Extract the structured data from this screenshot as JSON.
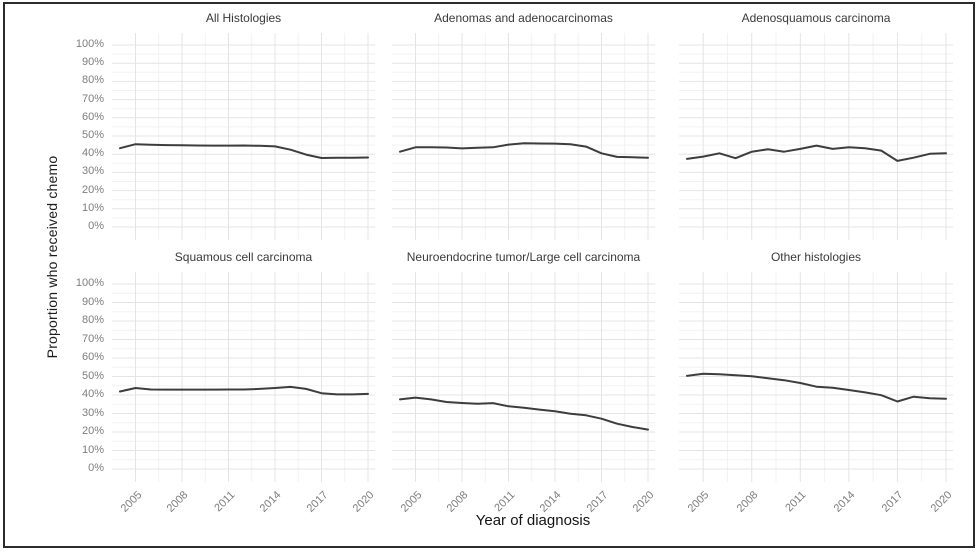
{
  "figure": {
    "y_axis_title": "Proportion who received chemo",
    "x_axis_title": "Year of diagnosis",
    "y_tick_labels": [
      "0%",
      "10%",
      "20%",
      "30%",
      "40%",
      "50%",
      "60%",
      "70%",
      "80%",
      "90%",
      "100%"
    ],
    "x_tick_labels": [
      "2005",
      "2008",
      "2011",
      "2014",
      "2017",
      "2020"
    ],
    "colors": {
      "line": "#3d3d3d",
      "grid_major": "#e4e4e4",
      "grid_minor": "#f2f2f2",
      "tick_text": "#7d7d7d",
      "strip_text": "#3a3a3a",
      "axis_title_text": "#141414",
      "frame_border": "#2b2b2b",
      "panel_background": "#ffffff"
    }
  },
  "chart_data": [
    {
      "type": "line",
      "title": "All Histologies",
      "xlabel": "Year of diagnosis",
      "ylabel": "Proportion who received chemo",
      "ylim": [
        0,
        100
      ],
      "xticks": [
        2005,
        2008,
        2011,
        2014,
        2017,
        2020
      ],
      "grid": "on",
      "legend": "none",
      "x": [
        2004,
        2005,
        2006,
        2007,
        2008,
        2009,
        2010,
        2011,
        2012,
        2013,
        2014,
        2015,
        2016,
        2017,
        2018,
        2019,
        2020
      ],
      "y": [
        43.3,
        45.5,
        45.2,
        45.0,
        44.9,
        44.8,
        44.7,
        44.7,
        44.8,
        44.6,
        44.3,
        42.5,
        39.8,
        37.9,
        38.0,
        38.1,
        38.2
      ]
    },
    {
      "type": "line",
      "title": "Adenomas and adenocarcinomas",
      "xlabel": "Year of diagnosis",
      "ylabel": "Proportion who received chemo",
      "ylim": [
        0,
        100
      ],
      "xticks": [
        2005,
        2008,
        2011,
        2014,
        2017,
        2020
      ],
      "grid": "on",
      "legend": "none",
      "x": [
        2004,
        2005,
        2006,
        2007,
        2008,
        2009,
        2010,
        2011,
        2012,
        2013,
        2014,
        2015,
        2016,
        2017,
        2018,
        2019,
        2020
      ],
      "y": [
        41.4,
        43.8,
        43.8,
        43.7,
        43.2,
        43.5,
        43.8,
        45.3,
        46.0,
        45.9,
        45.8,
        45.5,
        44.2,
        40.5,
        38.5,
        38.3,
        38.1
      ]
    },
    {
      "type": "line",
      "title": "Adenosquamous carcinoma",
      "xlabel": "Year of diagnosis",
      "ylabel": "Proportion who received chemo",
      "ylim": [
        0,
        100
      ],
      "xticks": [
        2005,
        2008,
        2011,
        2014,
        2017,
        2020
      ],
      "grid": "on",
      "legend": "none",
      "x": [
        2004,
        2005,
        2006,
        2007,
        2008,
        2009,
        2010,
        2011,
        2012,
        2013,
        2014,
        2015,
        2016,
        2017,
        2018,
        2019,
        2020
      ],
      "y": [
        37.4,
        38.7,
        40.5,
        37.8,
        41.4,
        42.7,
        41.4,
        42.9,
        44.7,
        42.9,
        43.8,
        43.3,
        42.0,
        36.3,
        38.1,
        40.2,
        40.5
      ]
    },
    {
      "type": "line",
      "title": "Squamous cell carcinoma",
      "xlabel": "Year of diagnosis",
      "ylabel": "Proportion who received chemo",
      "ylim": [
        0,
        100
      ],
      "xticks": [
        2005,
        2008,
        2011,
        2014,
        2017,
        2020
      ],
      "grid": "on",
      "legend": "none",
      "x": [
        2004,
        2005,
        2006,
        2007,
        2008,
        2009,
        2010,
        2011,
        2012,
        2013,
        2014,
        2015,
        2016,
        2017,
        2018,
        2019,
        2020
      ],
      "y": [
        41.9,
        43.8,
        43.0,
        42.9,
        42.9,
        42.9,
        42.9,
        43.0,
        43.0,
        43.3,
        43.8,
        44.4,
        43.3,
        41.0,
        40.3,
        40.3,
        40.6
      ]
    },
    {
      "type": "line",
      "title": "Neuroendocrine tumor/Large cell carcinoma",
      "xlabel": "Year of diagnosis",
      "ylabel": "Proportion who received chemo",
      "ylim": [
        0,
        100
      ],
      "xticks": [
        2005,
        2008,
        2011,
        2014,
        2017,
        2020
      ],
      "grid": "on",
      "legend": "none",
      "x": [
        2004,
        2005,
        2006,
        2007,
        2008,
        2009,
        2010,
        2011,
        2012,
        2013,
        2014,
        2015,
        2016,
        2017,
        2018,
        2019,
        2020
      ],
      "y": [
        37.6,
        38.6,
        37.6,
        36.2,
        35.7,
        35.3,
        35.6,
        33.9,
        33.1,
        32.1,
        31.2,
        29.9,
        29.0,
        27.2,
        24.5,
        22.7,
        21.3
      ]
    },
    {
      "type": "line",
      "title": "Other histologies",
      "xlabel": "Year of diagnosis",
      "ylabel": "Proportion who received chemo",
      "ylim": [
        0,
        100
      ],
      "xticks": [
        2005,
        2008,
        2011,
        2014,
        2017,
        2020
      ],
      "grid": "on",
      "legend": "none",
      "x": [
        2004,
        2005,
        2006,
        2007,
        2008,
        2009,
        2010,
        2011,
        2012,
        2013,
        2014,
        2015,
        2016,
        2017,
        2018,
        2019,
        2020
      ],
      "y": [
        50.3,
        51.5,
        51.2,
        50.7,
        50.1,
        49.1,
        48.0,
        46.5,
        44.5,
        43.9,
        42.7,
        41.4,
        39.9,
        36.5,
        39.1,
        38.2,
        38.0
      ]
    }
  ]
}
